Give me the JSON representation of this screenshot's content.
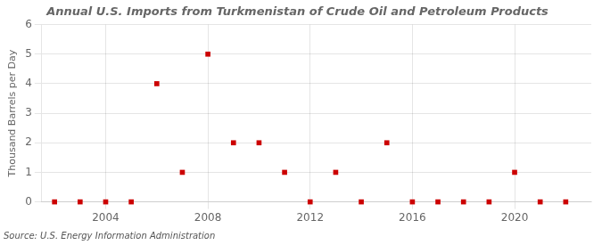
{
  "chart_data": {
    "type": "scatter",
    "title": "Annual U.S. Imports from Turkmenistan of Crude Oil and Petroleum Products",
    "y_label": "Thousand Barrels per Day",
    "annotations": [
      "Source: U.S. Energy Information Administration"
    ],
    "x": [
      2002,
      2003,
      2004,
      2005,
      2006,
      2007,
      2008,
      2009,
      2010,
      2011,
      2012,
      2013,
      2014,
      2015,
      2016,
      2017,
      2018,
      2019,
      2020,
      2021,
      2022
    ],
    "values": [
      0,
      0,
      0,
      0,
      4,
      1,
      5,
      2,
      2,
      1,
      0,
      1,
      0,
      2,
      0,
      0,
      0,
      0,
      1,
      0,
      0
    ],
    "color": "#cc0000",
    "marker": "square",
    "xlim": [
      2001.5,
      2023
    ],
    "xticks": [
      2004,
      2008,
      2012,
      2016,
      2020
    ],
    "ylim": [
      0,
      6
    ],
    "yticks": [
      0,
      1,
      2,
      3,
      4,
      5,
      6
    ],
    "grid": true
  }
}
